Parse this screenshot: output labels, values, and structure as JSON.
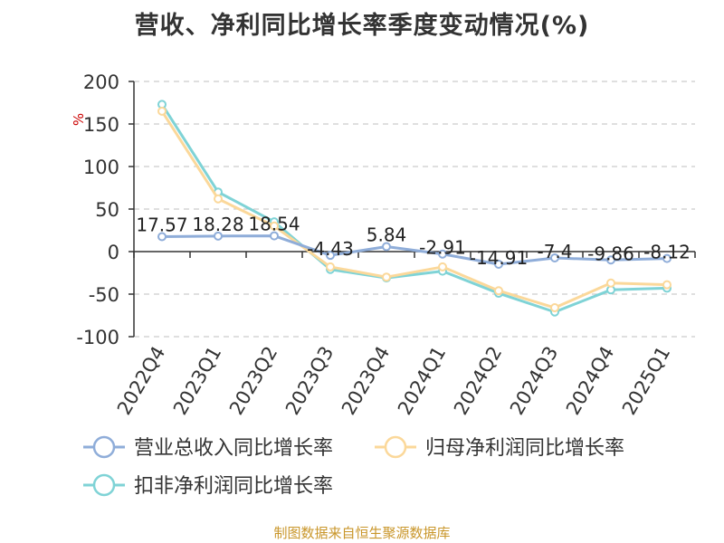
{
  "title": "营收、净利同比增长率季度变动情况(%)",
  "unit": "%",
  "source": "制图数据来自恒生聚源数据库",
  "colors": {
    "revenue": "#8fadd9",
    "net_profit": "#fbd89a",
    "deducted_net_profit": "#7fd3d6",
    "grid": "#cccccc",
    "axis": "#333333",
    "unit": "#cc0000",
    "source": "#c9962a"
  },
  "chart_data": {
    "type": "line",
    "title": "营收、净利同比增长率季度变动情况(%)",
    "xlabel": "",
    "ylabel": "%",
    "ylim": [
      -100,
      200
    ],
    "yticks": [
      200,
      150,
      100,
      50,
      0,
      -50,
      -100
    ],
    "grid": true,
    "legend_position": "bottom",
    "categories": [
      "2022Q4",
      "2023Q1",
      "2023Q2",
      "2023Q3",
      "2023Q4",
      "2024Q1",
      "2024Q2",
      "2024Q3",
      "2024Q4",
      "2025Q1"
    ],
    "series": [
      {
        "name": "营业总收入同比增长率",
        "key": "revenue",
        "values": [
          17.57,
          18.28,
          18.54,
          -4.43,
          5.84,
          -2.91,
          -14.91,
          -7.4,
          -9.86,
          -8.12
        ],
        "labels": [
          "17.57",
          "18.28",
          "18.54",
          "-4.43",
          "5.84",
          "-2.91",
          "-14.91",
          "-7.4",
          "-9.86",
          "-8.12"
        ]
      },
      {
        "name": "归母净利润同比增长率",
        "key": "net_profit",
        "values": [
          165,
          62,
          30,
          -18,
          -30,
          -18,
          -46,
          -66,
          -37,
          -39
        ]
      },
      {
        "name": "扣非净利润同比增长率",
        "key": "deducted_net_profit",
        "values": [
          173,
          70,
          35,
          -21,
          -31,
          -23,
          -49,
          -71,
          -45,
          -43
        ]
      }
    ]
  }
}
